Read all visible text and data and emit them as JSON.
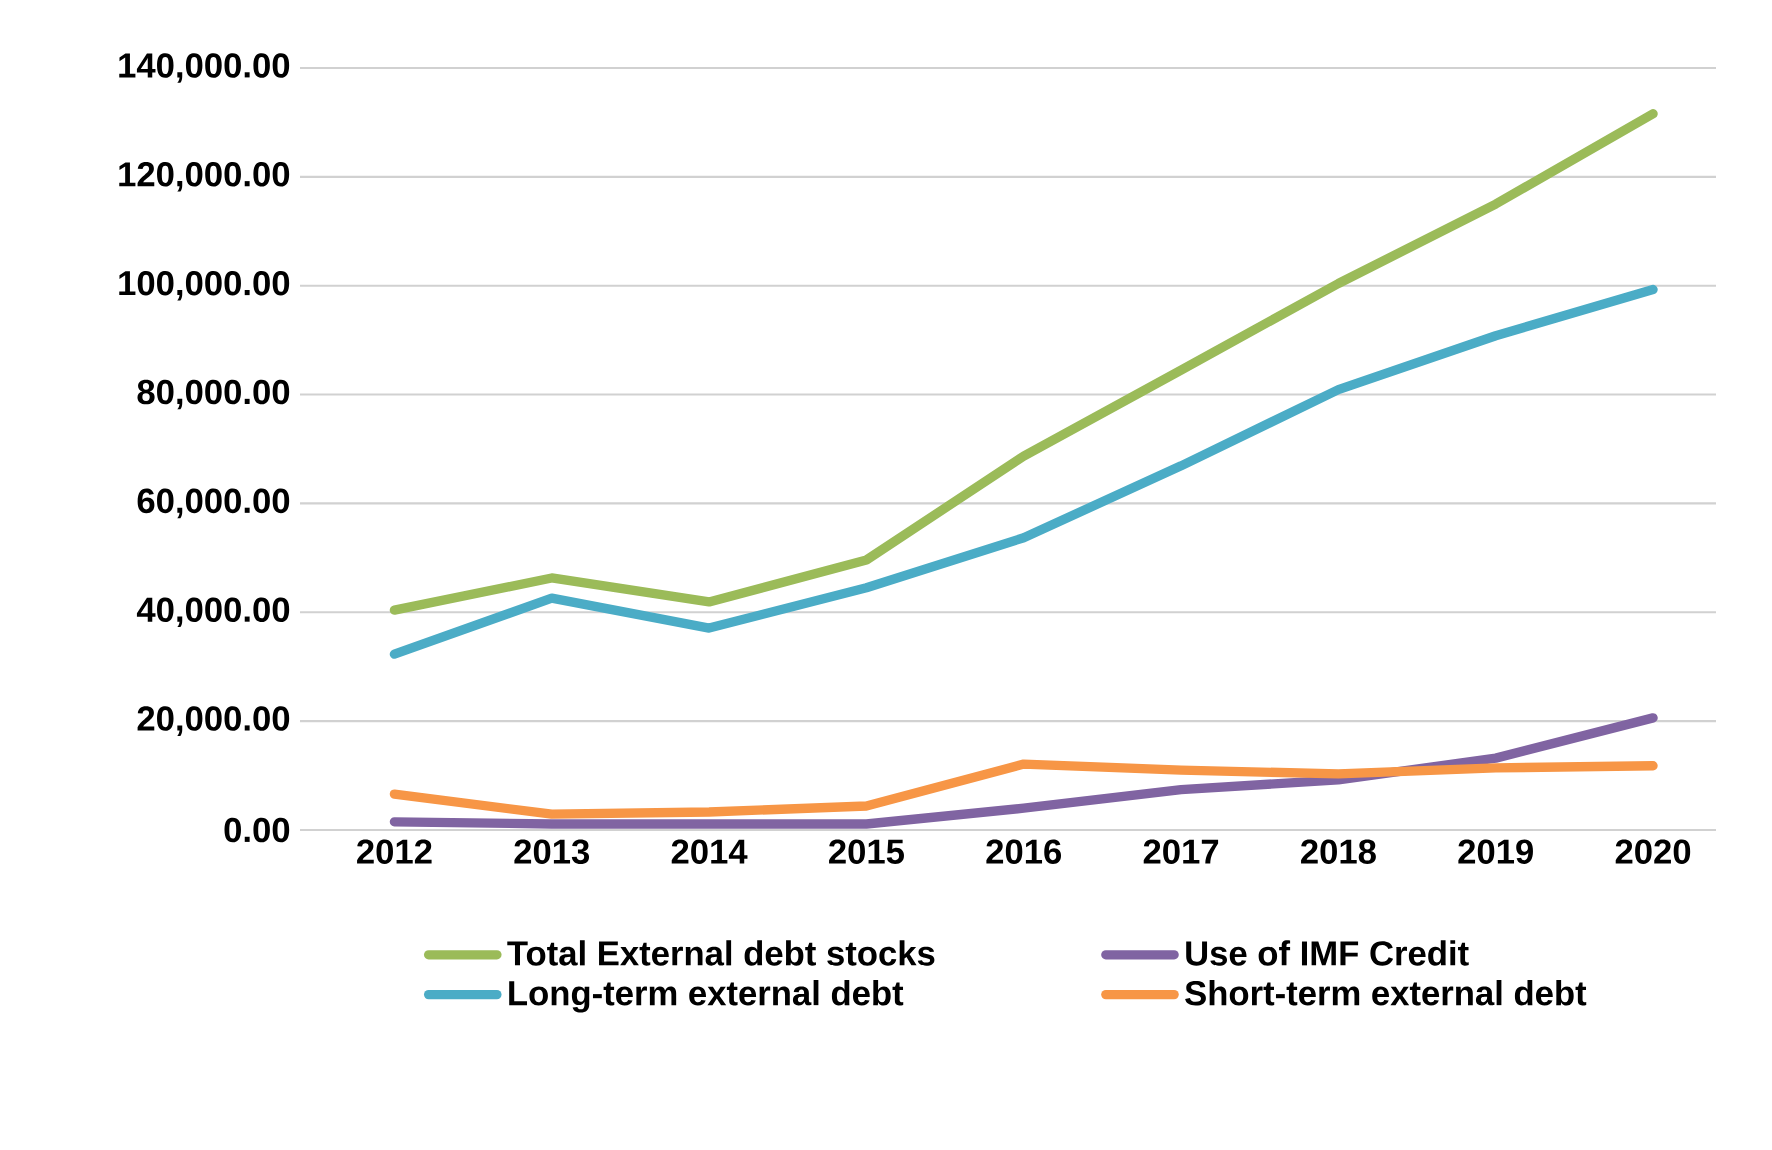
{
  "chart_data": {
    "type": "line",
    "categories": [
      "2012",
      "2013",
      "2014",
      "2015",
      "2016",
      "2017",
      "2018",
      "2019",
      "2020"
    ],
    "series": [
      {
        "name": "Total External debt stocks",
        "color": "#9bbb59",
        "values": [
          40400,
          46300,
          41900,
          49600,
          68700,
          84500,
          100400,
          115000,
          131600
        ]
      },
      {
        "name": "Use of IMF Credit",
        "color": "#8064a2",
        "values": [
          1500,
          1100,
          1100,
          1100,
          4000,
          7400,
          9200,
          13200,
          20600
        ]
      },
      {
        "name": "Long-term external debt",
        "color": "#4bacc6",
        "values": [
          32300,
          42600,
          37100,
          44500,
          53700,
          66900,
          80900,
          90800,
          99300
        ]
      },
      {
        "name": "Short-term external debt",
        "color": "#f79646",
        "values": [
          6600,
          2900,
          3300,
          4400,
          12100,
          11000,
          10300,
          11400,
          11800
        ]
      }
    ],
    "ylim": [
      0,
      140000
    ],
    "yticks": [
      {
        "value": 0,
        "label": "0.00"
      },
      {
        "value": 20000,
        "label": "20,000.00"
      },
      {
        "value": 40000,
        "label": "40,000.00"
      },
      {
        "value": 60000,
        "label": "60,000.00"
      },
      {
        "value": 80000,
        "label": "80,000.00"
      },
      {
        "value": 100000,
        "label": "100,000.00"
      },
      {
        "value": 120000,
        "label": "120,000.00"
      },
      {
        "value": 140000,
        "label": "140,000.00"
      }
    ],
    "grid": "y",
    "legend": "bottom",
    "marker": "none",
    "line_style": "solid"
  }
}
